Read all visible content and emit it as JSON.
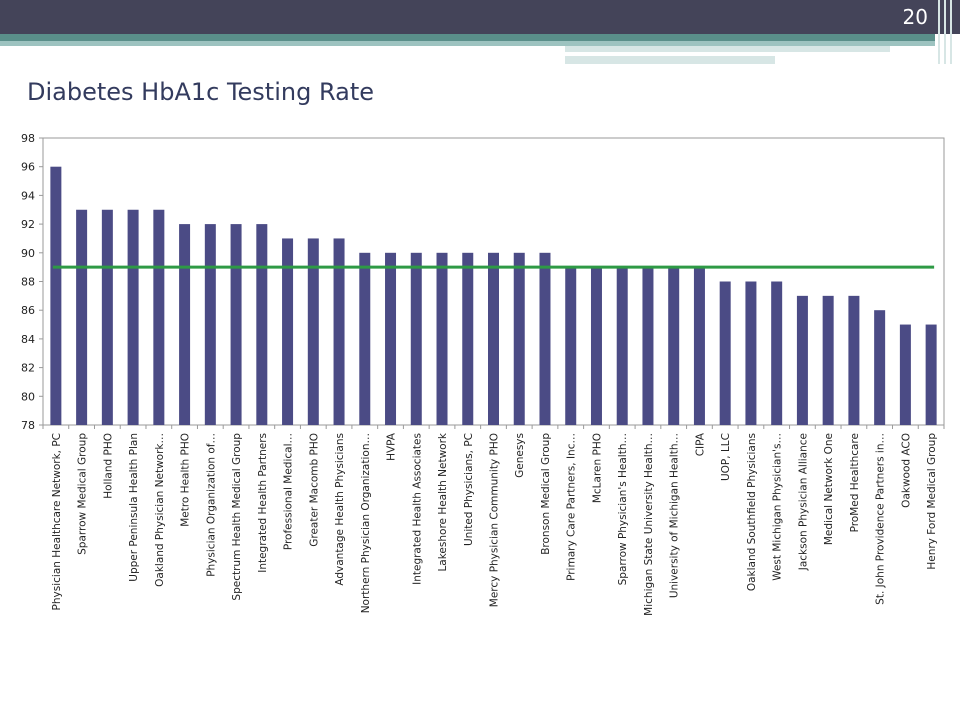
{
  "slide": {
    "page_number": "20",
    "title": "Diabetes HbA1c Testing Rate"
  },
  "colors": {
    "bar": "#4b4b85",
    "target_line": "#2e9a45",
    "header": "#444459",
    "accent": "#5a8f8a"
  },
  "chart_data": {
    "type": "bar",
    "title": "",
    "xlabel": "",
    "ylabel": "",
    "ylim": [
      78,
      98
    ],
    "yticks": [
      78,
      80,
      82,
      84,
      86,
      88,
      90,
      92,
      94,
      96,
      98
    ],
    "grid": false,
    "categories": [
      "Physician Healthcare Network, PC",
      "Sparrow Medical Group",
      "Holland PHO",
      "Upper Peninsula Health Plan",
      "Oakland Physician Network…",
      "Metro Health PHO",
      "Physician Organization of…",
      "Spectrum Health Medical Group",
      "Integrated Health Partners",
      "Professional Medical…",
      "Greater Macomb PHO",
      "Advantage Health Physicians",
      "Northern Physician Organization…",
      "HVPA",
      "Integrated Health Associates",
      "Lakeshore Health Network",
      "United Physicians, PC",
      "Mercy Physician Community PHO",
      "Genesys",
      "Bronson Medical Group",
      "Primary Care Partners, Inc…",
      "McLaren PHO",
      "Sparrow Physician's Health…",
      "Michigan State University Health…",
      "University of Michigan Health…",
      "CIPA",
      "UOP, LLC",
      "Oakland Southfield Physicians",
      "West Michigan Physician's…",
      "Jackson Physician Alliance",
      "Medical Network One",
      "ProMed Healthcare",
      "St. John Providence Partners in…",
      "Oakwood ACO",
      "Henry Ford Medical Group"
    ],
    "values": [
      96,
      93,
      93,
      93,
      93,
      92,
      92,
      92,
      92,
      91,
      91,
      91,
      90,
      90,
      90,
      90,
      90,
      90,
      90,
      90,
      89,
      89,
      89,
      89,
      89,
      89,
      88,
      88,
      88,
      87,
      87,
      87,
      86,
      85,
      85
    ],
    "reference_line": 89
  }
}
